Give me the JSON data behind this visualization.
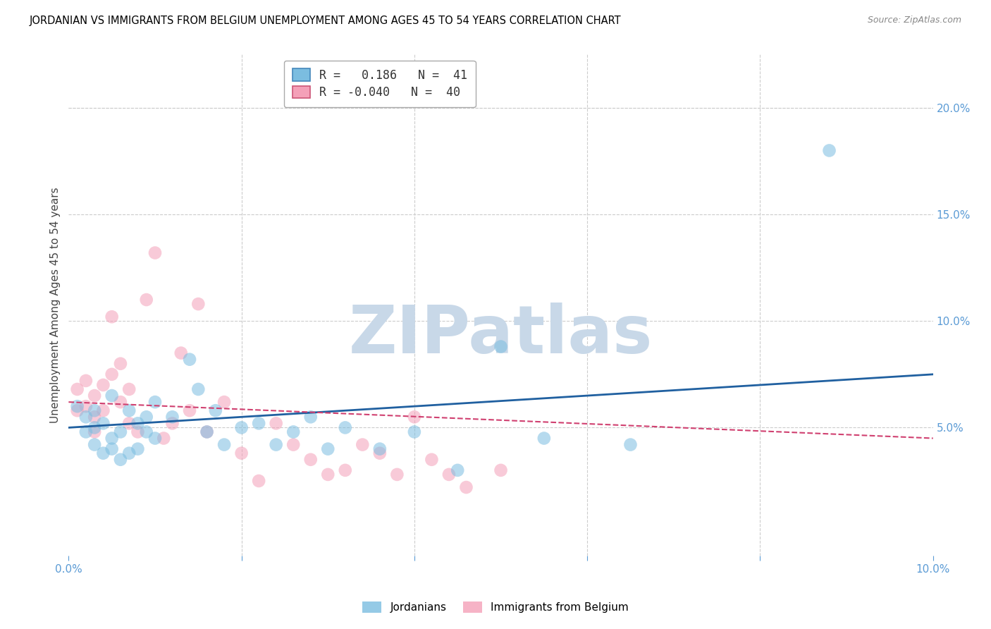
{
  "title": "JORDANIAN VS IMMIGRANTS FROM BELGIUM UNEMPLOYMENT AMONG AGES 45 TO 54 YEARS CORRELATION CHART",
  "source": "Source: ZipAtlas.com",
  "ylabel": "Unemployment Among Ages 45 to 54 years",
  "xlim": [
    0.0,
    0.1
  ],
  "ylim": [
    -0.01,
    0.225
  ],
  "yticks_right": [
    0.05,
    0.1,
    0.15,
    0.2
  ],
  "ytick_labels_right": [
    "5.0%",
    "10.0%",
    "15.0%",
    "20.0%"
  ],
  "watermark": "ZIPatlas",
  "watermark_color": "#c8d8e8",
  "blue_color": "#7bbde0",
  "pink_color": "#f4a0b8",
  "blue_line_color": "#2060a0",
  "pink_line_color": "#d04070",
  "legend_blue_label": "R =   0.186   N =  41",
  "legend_pink_label": "R = -0.040   N =  40",
  "legend_jordanians": "Jordanians",
  "legend_belgium": "Immigrants from Belgium",
  "jordanians_x": [
    0.001,
    0.002,
    0.002,
    0.003,
    0.003,
    0.003,
    0.004,
    0.004,
    0.005,
    0.005,
    0.005,
    0.006,
    0.006,
    0.007,
    0.007,
    0.008,
    0.008,
    0.009,
    0.009,
    0.01,
    0.01,
    0.012,
    0.014,
    0.015,
    0.016,
    0.017,
    0.018,
    0.02,
    0.022,
    0.024,
    0.026,
    0.028,
    0.03,
    0.032,
    0.036,
    0.04,
    0.045,
    0.05,
    0.055,
    0.065,
    0.088
  ],
  "jordanians_y": [
    0.06,
    0.055,
    0.048,
    0.05,
    0.042,
    0.058,
    0.038,
    0.052,
    0.045,
    0.04,
    0.065,
    0.035,
    0.048,
    0.058,
    0.038,
    0.052,
    0.04,
    0.048,
    0.055,
    0.045,
    0.062,
    0.055,
    0.082,
    0.068,
    0.048,
    0.058,
    0.042,
    0.05,
    0.052,
    0.042,
    0.048,
    0.055,
    0.04,
    0.05,
    0.04,
    0.048,
    0.03,
    0.088,
    0.045,
    0.042,
    0.18
  ],
  "belgium_x": [
    0.001,
    0.001,
    0.002,
    0.002,
    0.003,
    0.003,
    0.003,
    0.004,
    0.004,
    0.005,
    0.005,
    0.006,
    0.006,
    0.007,
    0.007,
    0.008,
    0.009,
    0.01,
    0.011,
    0.012,
    0.013,
    0.014,
    0.015,
    0.016,
    0.018,
    0.02,
    0.022,
    0.024,
    0.026,
    0.028,
    0.03,
    0.032,
    0.034,
    0.036,
    0.038,
    0.04,
    0.042,
    0.044,
    0.046,
    0.05
  ],
  "belgium_y": [
    0.058,
    0.068,
    0.072,
    0.06,
    0.055,
    0.048,
    0.065,
    0.058,
    0.07,
    0.102,
    0.075,
    0.062,
    0.08,
    0.052,
    0.068,
    0.048,
    0.11,
    0.132,
    0.045,
    0.052,
    0.085,
    0.058,
    0.108,
    0.048,
    0.062,
    0.038,
    0.025,
    0.052,
    0.042,
    0.035,
    0.028,
    0.03,
    0.042,
    0.038,
    0.028,
    0.055,
    0.035,
    0.028,
    0.022,
    0.03
  ],
  "blue_line_x0": 0.0,
  "blue_line_y0": 0.05,
  "blue_line_x1": 0.1,
  "blue_line_y1": 0.075,
  "pink_line_x0": 0.0,
  "pink_line_y0": 0.062,
  "pink_line_x1": 0.1,
  "pink_line_y1": 0.045
}
